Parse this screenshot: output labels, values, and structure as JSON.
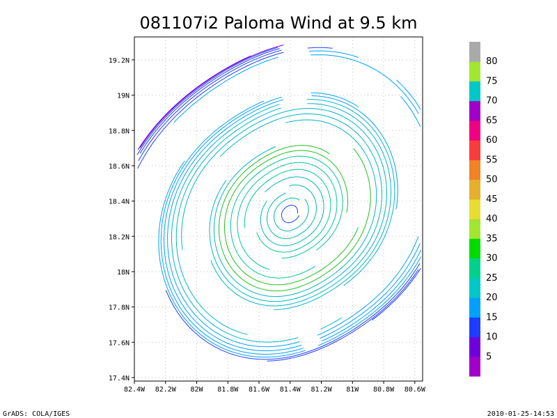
{
  "chart_data": {
    "type": "streamline",
    "title": "081107i2 Paloma Wind at 9.5 km",
    "x_ticks": [
      "82.4W",
      "82.2W",
      "82W",
      "81.8W",
      "81.6W",
      "81.4W",
      "81.2W",
      "81W",
      "80.8W",
      "80.6W"
    ],
    "y_ticks": [
      "17.4N",
      "17.6N",
      "17.8N",
      "18N",
      "18.2N",
      "18.4N",
      "18.6N",
      "18.8N",
      "19N",
      "19.2N"
    ],
    "xlim": [
      -82.4,
      -80.55
    ],
    "ylim": [
      17.38,
      19.33
    ],
    "grid": true,
    "center": {
      "lon": -81.4,
      "lat": 18.33
    },
    "colorbar": {
      "labels": [
        "5",
        "10",
        "15",
        "20",
        "25",
        "30",
        "35",
        "40",
        "45",
        "50",
        "55",
        "60",
        "65",
        "70",
        "75",
        "80"
      ],
      "colors": [
        "#a000c8",
        "#6e00dc",
        "#1e3cff",
        "#00a0ff",
        "#00c8c8",
        "#00d28c",
        "#00dc00",
        "#a0e632",
        "#e6dc32",
        "#e6af2d",
        "#f08228",
        "#fa3c3c",
        "#f00082",
        "#a000c8",
        "#00c8c8",
        "#a0e632",
        "#aaaaaa"
      ]
    }
  },
  "footer": {
    "left": "GrADS: COLA/IGES",
    "right": "2010-01-25-14:53"
  }
}
